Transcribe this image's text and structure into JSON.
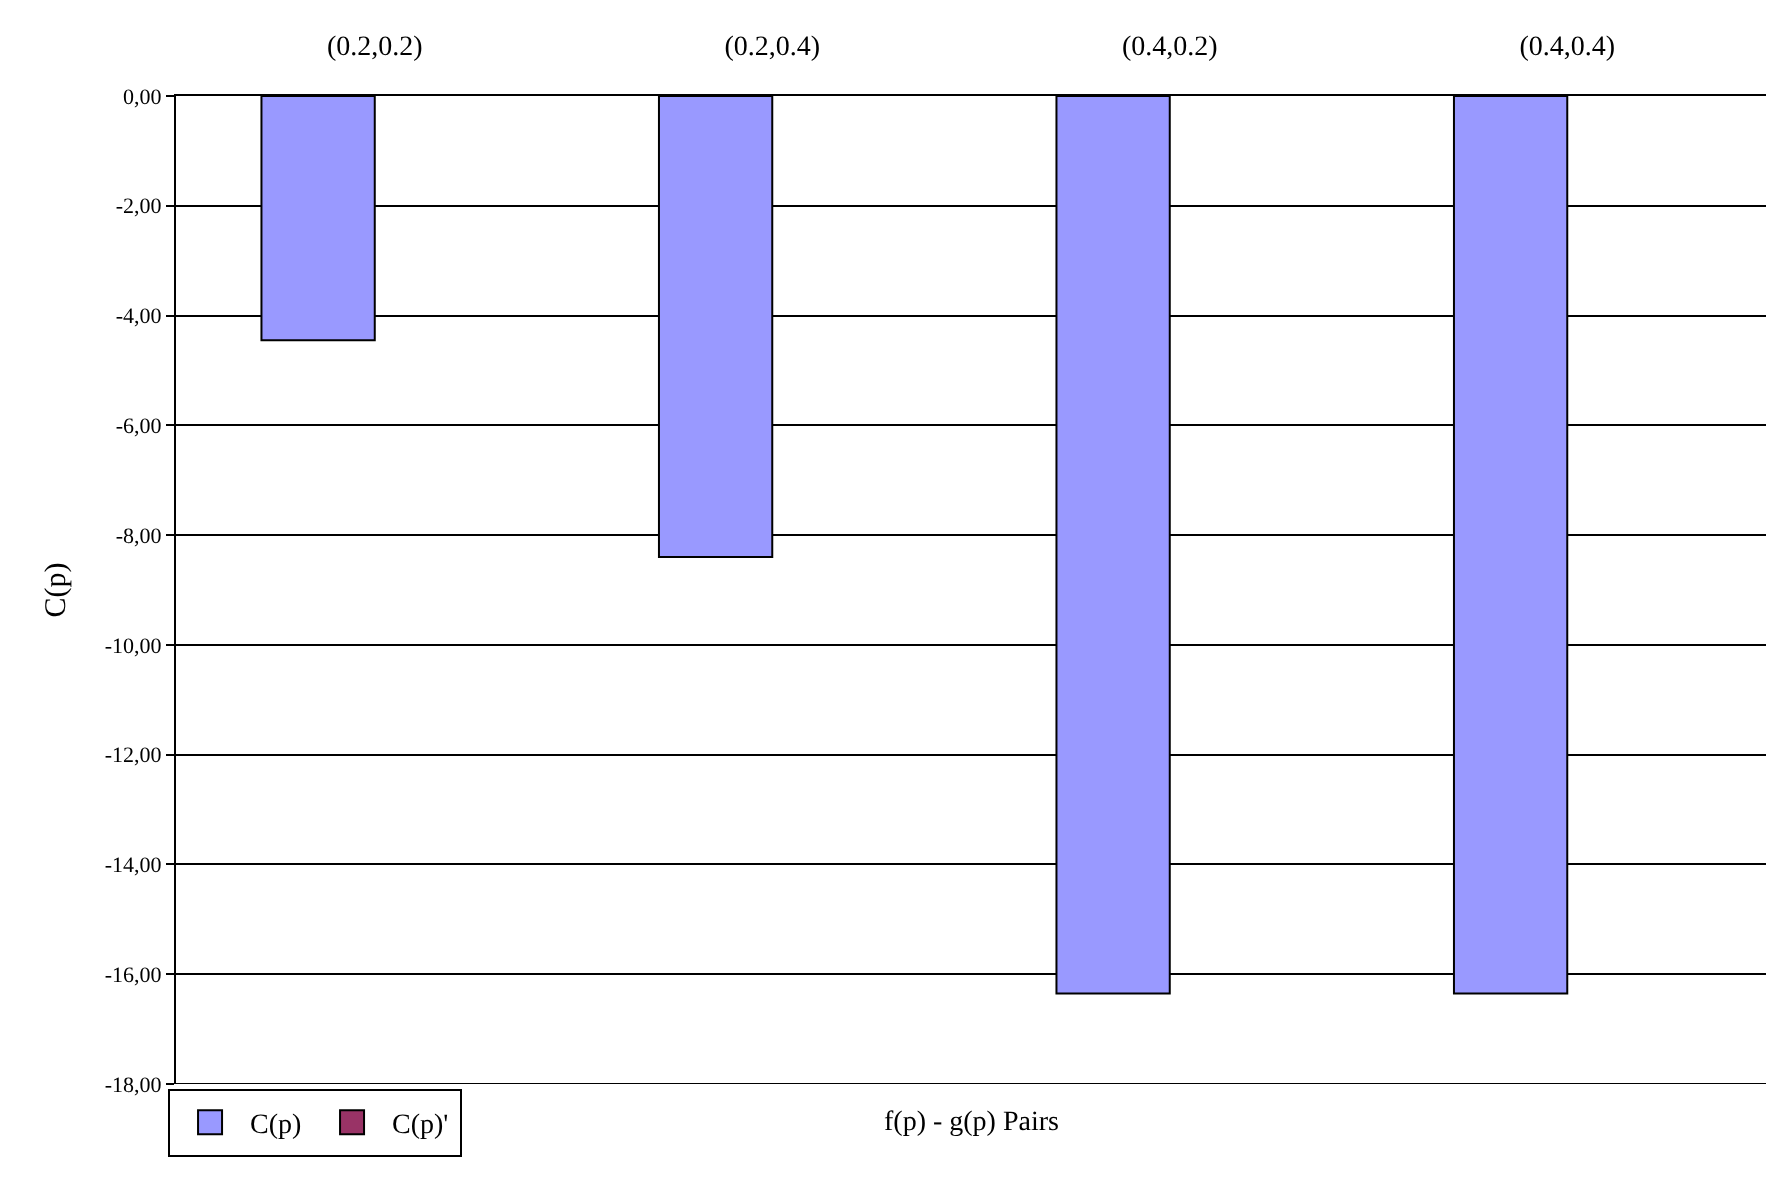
{
  "chart_data": {
    "type": "bar",
    "xlabel": "f(p) - g(p) Pairs",
    "ylabel": "C(p)",
    "categories": [
      "(0.2,0.2)",
      "(0.2,0.4)",
      "(0.4,0.2)",
      "(0.4,0.4)"
    ],
    "series": [
      {
        "name": "C(p)",
        "color": "#9999ff",
        "values": [
          -4.45,
          -8.4,
          -16.35,
          -16.35
        ]
      },
      {
        "name": "C(p)'",
        "color": "#993366",
        "values": [
          null,
          null,
          null,
          null
        ]
      }
    ],
    "ylim": [
      -18,
      0
    ],
    "yticks": [
      {
        "value": 0,
        "label": "0,00"
      },
      {
        "value": -2,
        "label": "-2,00"
      },
      {
        "value": -4,
        "label": "-4,00"
      },
      {
        "value": -6,
        "label": "-6,00"
      },
      {
        "value": -8,
        "label": "-8,00"
      },
      {
        "value": -10,
        "label": "-10,00"
      },
      {
        "value": -12,
        "label": "-12,00"
      },
      {
        "value": -14,
        "label": "-14,00"
      },
      {
        "value": -16,
        "label": "-16,00"
      },
      {
        "value": -18,
        "label": "-18,00"
      }
    ],
    "grid": "y",
    "legend": "bottom left"
  }
}
